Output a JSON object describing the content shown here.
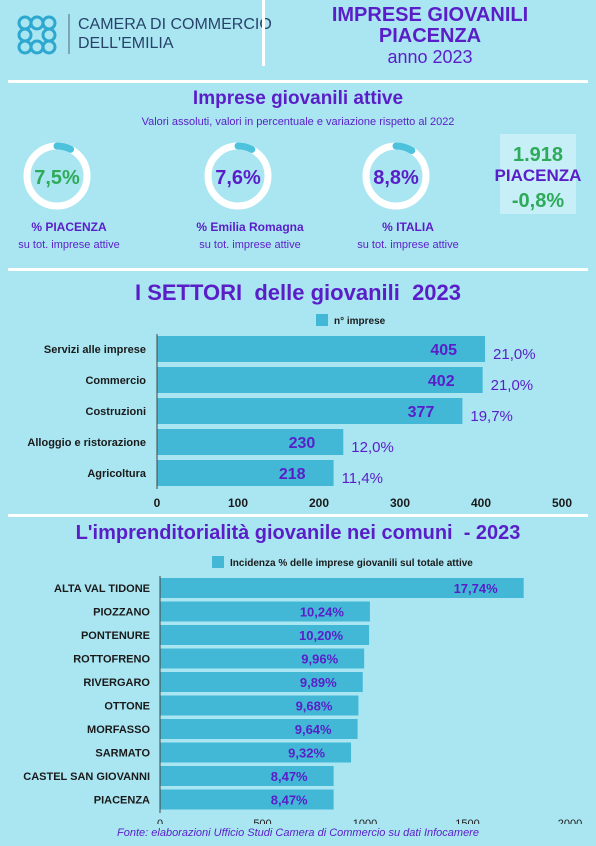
{
  "header": {
    "org_line1": "CAMERA DI COMMERCIO",
    "org_line2": "DELL'EMILIA",
    "title_line1": "IMPRESE GIOVANILI",
    "title_line2": "PIACENZA",
    "title_line3": "anno 2023"
  },
  "kpi": {
    "title": "Imprese giovanili attive",
    "subtitle": "Valori assoluti, valori in percentuale e variazione rispetto al 2022",
    "rings": [
      {
        "value": "7,5%",
        "label": "%  PIACENZA",
        "sublabel": "su tot. imprese attive",
        "fraction": 0.075,
        "value_color": "#2eaa58",
        "label_color": "#5a1ec8"
      },
      {
        "value": "7,6%",
        "label": "%  Emilia Romagna",
        "sublabel": "su tot. imprese attive",
        "fraction": 0.076,
        "value_color": "#5a1ec8",
        "label_color": "#5a1ec8"
      },
      {
        "value": "8,8%",
        "label": "%  ITALIA",
        "sublabel": "su tot. imprese attive",
        "fraction": 0.088,
        "value_color": "#5a1ec8",
        "label_color": "#5a1ec8"
      }
    ],
    "box": {
      "count": "1.918",
      "place": "PIACENZA",
      "change": "-0,8%"
    }
  },
  "chart_data": [
    {
      "type": "bar",
      "orientation": "horizontal",
      "title": "I SETTORI  delle giovanili  2023",
      "legend": "n° imprese",
      "legend_position": "top",
      "categories": [
        "Servizi alle imprese",
        "Commercio",
        "Costruzioni",
        "Alloggio e ristorazione",
        "Agricoltura"
      ],
      "values": [
        405,
        402,
        377,
        230,
        218
      ],
      "value_labels": [
        "405",
        "402",
        "377",
        "230",
        "218"
      ],
      "percent_labels": [
        "21,0%",
        "21,0%",
        "19,7%",
        "12,0%",
        "11,4%"
      ],
      "xlim": [
        0,
        500
      ],
      "xticks": [
        "0",
        "100",
        "200",
        "300",
        "400",
        "500"
      ],
      "grid": false
    },
    {
      "type": "bar",
      "orientation": "horizontal",
      "title": "L'imprenditorialità giovanile nei comuni  - 2023",
      "legend": "Incidenza % delle imprese giovanili sul totale attive",
      "legend_position": "top",
      "categories": [
        "ALTA VAL TIDONE",
        "PIOZZANO",
        "PONTENURE",
        "ROTTOFRENO",
        "RIVERGARO",
        "OTTONE",
        "MORFASSO",
        "SARMATO",
        "CASTEL SAN GIOVANNI",
        "PIACENZA"
      ],
      "values": [
        1774,
        1024,
        1020,
        996,
        989,
        968,
        964,
        932,
        847,
        847
      ],
      "value_labels": [
        "17,74%",
        "10,24%",
        "10,20%",
        "9,96%",
        "9,89%",
        "9,68%",
        "9,64%",
        "9,32%",
        "8,47%",
        "8,47%"
      ],
      "xlim": [
        0,
        2000
      ],
      "xticks": [
        "0",
        "500",
        "1000",
        "1500",
        "2000"
      ],
      "grid": false
    }
  ],
  "footer": {
    "source": "Fonte: elaborazioni Ufficio Studi Camera di Commercio su dati Infocamere"
  },
  "colors": {
    "background": "#a9e6f2",
    "bar": "#42b8d6",
    "purple": "#5a1ec8",
    "green": "#2eaa58",
    "ring_track": "#ffffff",
    "ring_fill": "#4cc2dd"
  }
}
